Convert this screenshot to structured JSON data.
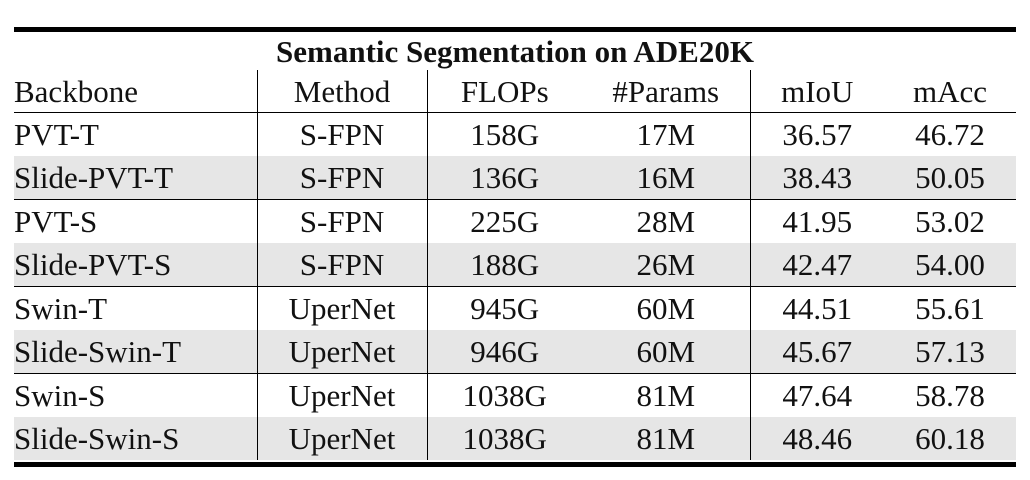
{
  "table": {
    "title": "Semantic Segmentation on ADE20K",
    "headers": [
      "Backbone",
      "Method",
      "FLOPs",
      "#Params",
      "mIoU",
      "mAcc"
    ],
    "rows": [
      {
        "backbone": "PVT-T",
        "method": "S-FPN",
        "flops": "158G",
        "params": "17M",
        "miou": "36.57",
        "macc": "46.72",
        "highlight": false
      },
      {
        "backbone": "Slide-PVT-T",
        "method": "S-FPN",
        "flops": "136G",
        "params": "16M",
        "miou": "38.43",
        "macc": "50.05",
        "highlight": true
      },
      {
        "backbone": "PVT-S",
        "method": "S-FPN",
        "flops": "225G",
        "params": "28M",
        "miou": "41.95",
        "macc": "53.02",
        "highlight": false
      },
      {
        "backbone": "Slide-PVT-S",
        "method": "S-FPN",
        "flops": "188G",
        "params": "26M",
        "miou": "42.47",
        "macc": "54.00",
        "highlight": true
      },
      {
        "backbone": "Swin-T",
        "method": "UperNet",
        "flops": "945G",
        "params": "60M",
        "miou": "44.51",
        "macc": "55.61",
        "highlight": false
      },
      {
        "backbone": "Slide-Swin-T",
        "method": "UperNet",
        "flops": "946G",
        "params": "60M",
        "miou": "45.67",
        "macc": "57.13",
        "highlight": true
      },
      {
        "backbone": "Swin-S",
        "method": "UperNet",
        "flops": "1038G",
        "params": "81M",
        "miou": "47.64",
        "macc": "58.78",
        "highlight": false
      },
      {
        "backbone": "Slide-Swin-S",
        "method": "UperNet",
        "flops": "1038G",
        "params": "81M",
        "miou": "48.46",
        "macc": "60.18",
        "highlight": true
      }
    ]
  },
  "colors": {
    "highlight_row_bg": "#e6e6e6",
    "rule": "#000000"
  }
}
